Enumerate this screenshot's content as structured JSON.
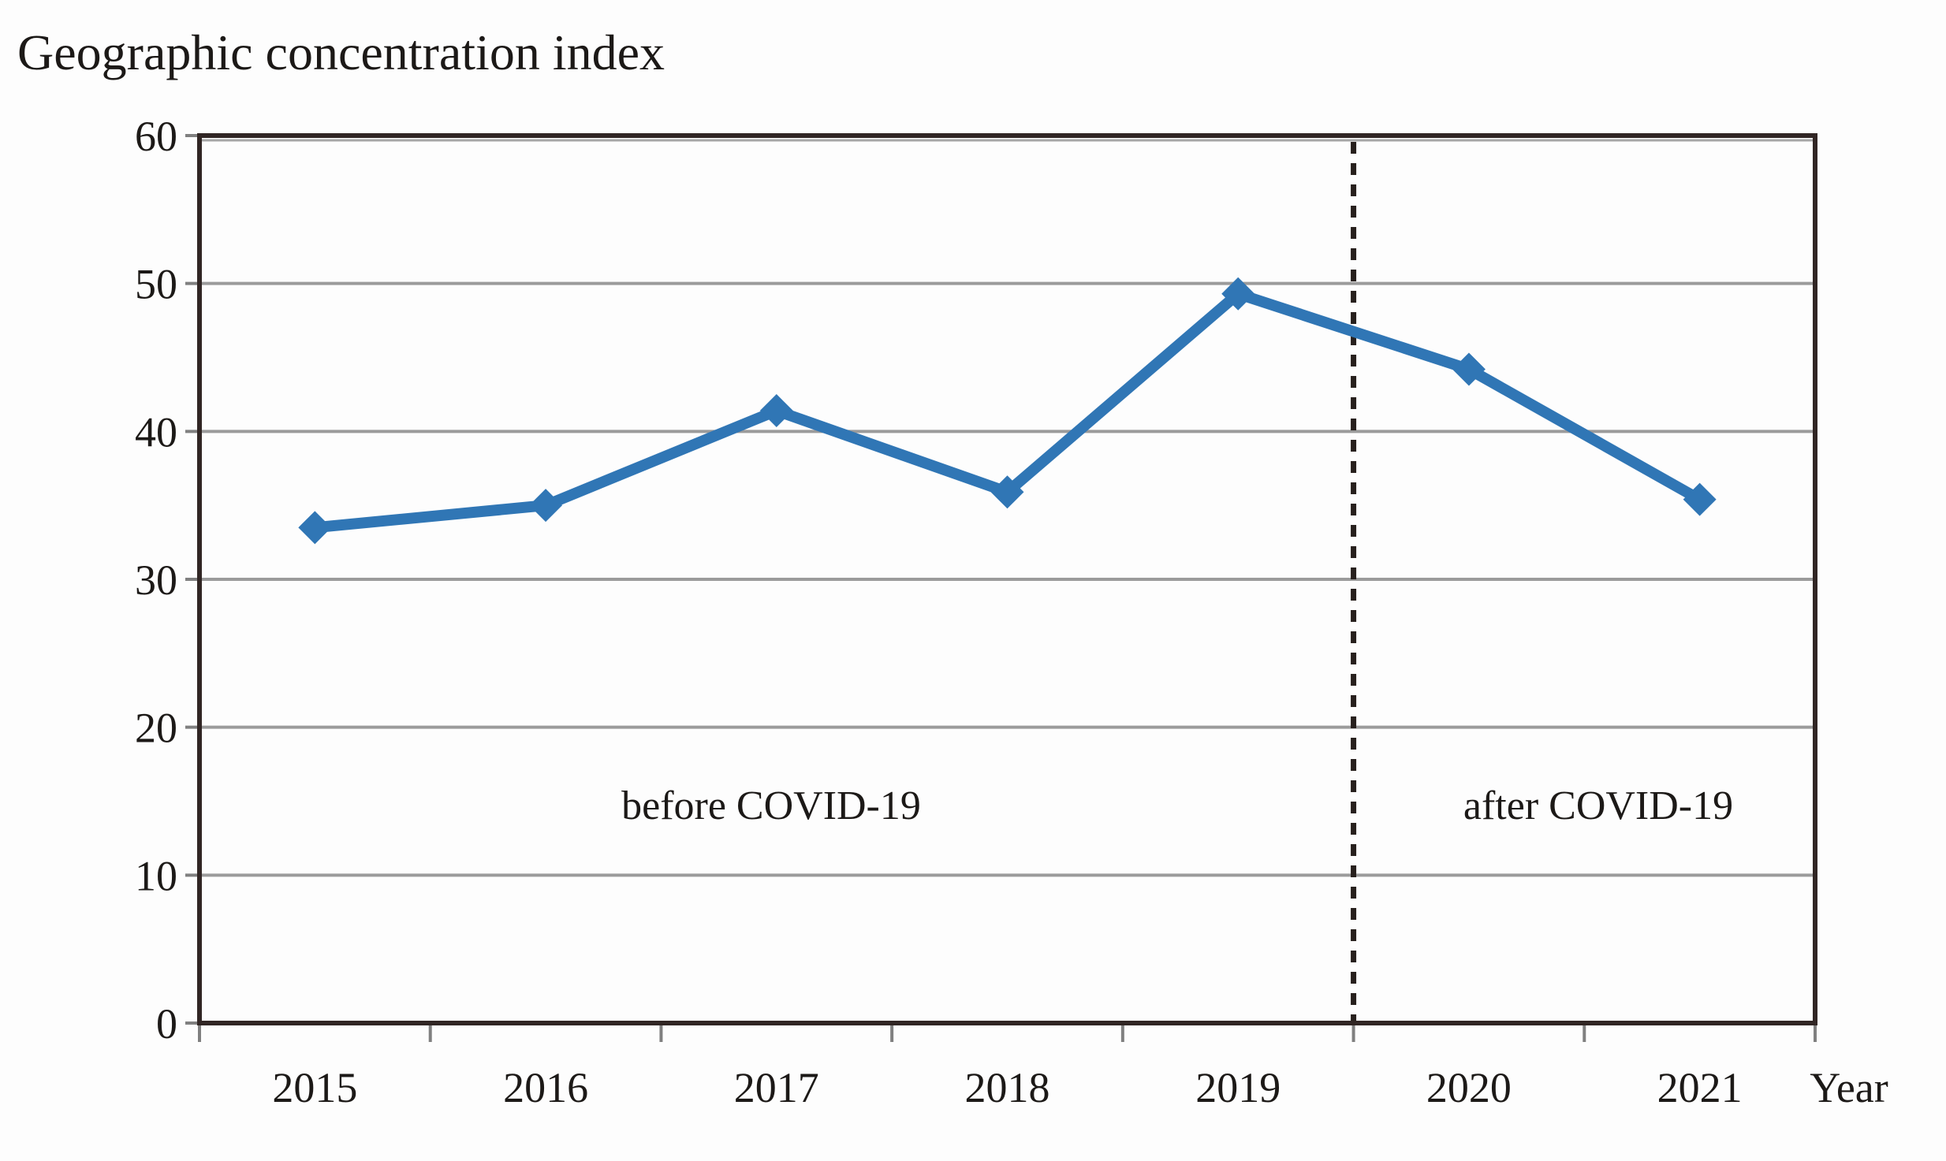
{
  "title": "Geographic concentration index",
  "chart_data": {
    "type": "line",
    "title": "Geographic concentration index",
    "categories": [
      "2015",
      "2016",
      "2017",
      "2018",
      "2019",
      "2020",
      "2021"
    ],
    "series": [
      {
        "name": "Geographic concentration index",
        "values": [
          33.5,
          35.0,
          41.4,
          35.9,
          49.3,
          44.2,
          35.4
        ]
      }
    ],
    "xlabel": "Year",
    "ylabel": "",
    "ylim": [
      0,
      60
    ],
    "ytick_step": 10,
    "yticks": [
      0,
      10,
      20,
      30,
      40,
      50,
      60
    ],
    "grid": "horizontal",
    "legend": "none",
    "marker": "diamond",
    "annotations": [
      {
        "text": "before COVID-19",
        "y_value": 14.9
      },
      {
        "text": "after COVID-19",
        "y_value": 14.9
      }
    ],
    "separator": {
      "style": "dashed",
      "between": [
        "2019",
        "2020"
      ]
    }
  },
  "colors": {
    "line": "#3076b5",
    "border": "#312624",
    "gridline": "#9b9b9b",
    "grid_shadow": "#a6a6a6",
    "tick": "#808080",
    "dashed_line": "#27201d",
    "text": "#1c1917",
    "background": "#fdfdfd"
  }
}
